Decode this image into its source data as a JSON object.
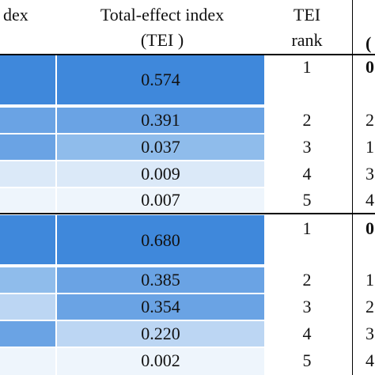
{
  "header": {
    "col1_fragment": "dex",
    "col2_line1": "Total-effect index",
    "col2_line2": "(TEI )",
    "col3_line1": "TEI",
    "col3_line2": "rank",
    "col4_fragment": "("
  },
  "colors": {
    "shade_1": "#3f88db",
    "shade_2": "#6aa3e4",
    "shade_3": "#8fbceb",
    "shade_4": "#bcd6f3",
    "shade_5": "#dbe9f8",
    "shade_6": "#eef5fc"
  },
  "group1": {
    "rows": [
      {
        "tei": "0.574",
        "rank": "1",
        "col4": "0"
      },
      {
        "tei": "0.391",
        "rank": "2",
        "col4": "2"
      },
      {
        "tei": "0.037",
        "rank": "3",
        "col4": "1"
      },
      {
        "tei": "0.009",
        "rank": "4",
        "col4": "3"
      },
      {
        "tei": "0.007",
        "rank": "5",
        "col4": "4"
      }
    ]
  },
  "group2": {
    "rows": [
      {
        "tei": "0.680",
        "rank": "1",
        "col4": "0"
      },
      {
        "tei": "0.385",
        "rank": "2",
        "col4": "1"
      },
      {
        "tei": "0.354",
        "rank": "3",
        "col4": "2"
      },
      {
        "tei": "0.220",
        "rank": "4",
        "col4": "3"
      },
      {
        "tei": "0.002",
        "rank": "5",
        "col4": "4"
      }
    ]
  }
}
